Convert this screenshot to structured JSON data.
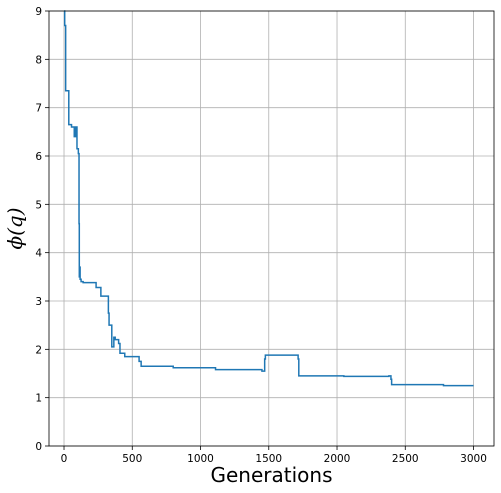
{
  "chart_data": {
    "type": "line",
    "title": "",
    "xlabel": "Generations",
    "ylabel": "ϕ(q)",
    "xlim": [
      -110,
      3150
    ],
    "ylim": [
      0,
      9
    ],
    "xticks": [
      0,
      500,
      1000,
      1500,
      2000,
      2500,
      3000
    ],
    "yticks": [
      0,
      1,
      2,
      3,
      4,
      5,
      6,
      7,
      8,
      9
    ],
    "xtick_labels": [
      "0",
      "500",
      "1000",
      "1500",
      "2000",
      "2500",
      "3000"
    ],
    "ytick_labels": [
      "0",
      "1",
      "2",
      "3",
      "4",
      "5",
      "6",
      "7",
      "8",
      "9"
    ],
    "grid": true,
    "line_color": "#1f77b4",
    "series": [
      {
        "step": true,
        "x": [
          0,
          5,
          12,
          35,
          55,
          75,
          85,
          95,
          105,
          110,
          112,
          114,
          118,
          125,
          140,
          165,
          185,
          235,
          270,
          290,
          320,
          325,
          330,
          340,
          345,
          350,
          365,
          375,
          380,
          400,
          410,
          425,
          445,
          500,
          510,
          550,
          565,
          775,
          800,
          1100,
          1110,
          1450,
          1470,
          1475,
          1700,
          1715,
          1720,
          2000,
          2050,
          2380,
          2395,
          2400,
          2750,
          2780,
          3000
        ],
        "y": [
          9.0,
          8.7,
          7.35,
          6.65,
          6.6,
          6.4,
          6.6,
          6.15,
          6.05,
          4.6,
          3.5,
          3.7,
          3.45,
          3.4,
          3.38,
          3.38,
          3.38,
          3.28,
          3.1,
          3.1,
          3.1,
          2.75,
          2.5,
          2.5,
          2.5,
          2.05,
          2.25,
          2.2,
          2.2,
          2.12,
          1.92,
          1.92,
          1.85,
          1.85,
          1.85,
          1.75,
          1.65,
          1.65,
          1.62,
          1.62,
          1.58,
          1.55,
          1.8,
          1.88,
          1.88,
          1.8,
          1.45,
          1.45,
          1.44,
          1.45,
          1.38,
          1.27,
          1.27,
          1.25,
          1.25
        ]
      }
    ]
  }
}
